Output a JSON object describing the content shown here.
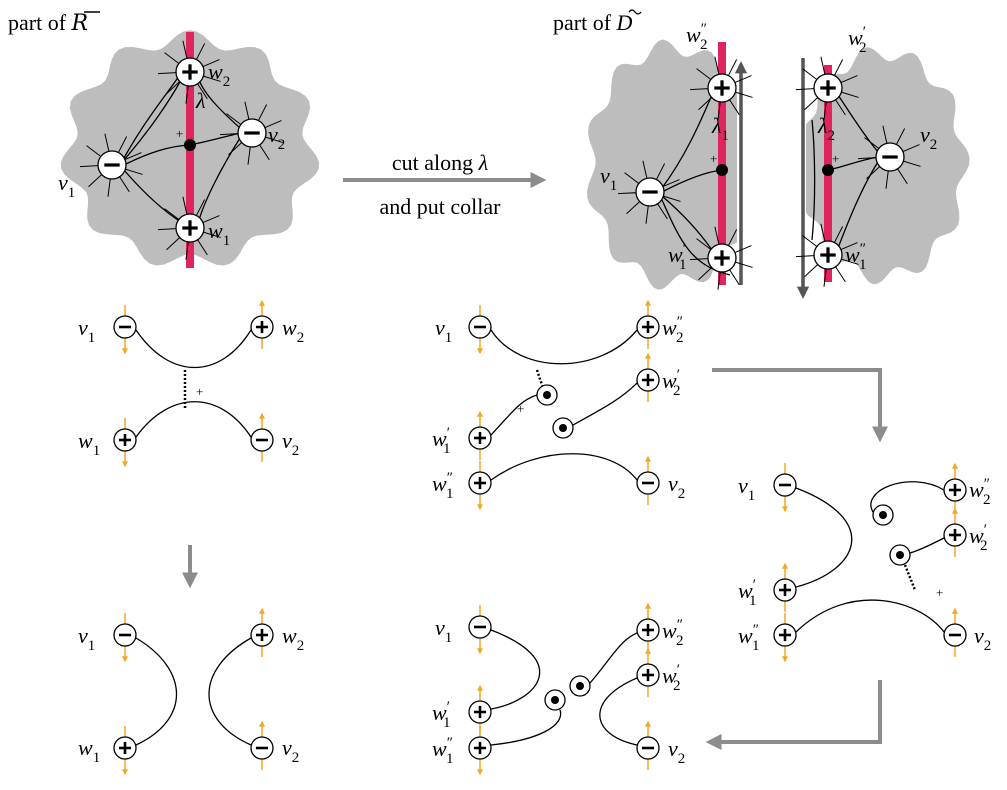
{
  "captions": {
    "left": {
      "text": "part of",
      "symbol": "R"
    },
    "right": {
      "text": "part of",
      "symbol": "D"
    }
  },
  "transition": {
    "line1": "cut along",
    "symbol": "λ",
    "line2": "and put collar"
  },
  "labels": [
    {
      "base": "w",
      "sub": "2"
    },
    {
      "base": "w",
      "sub": "1"
    },
    {
      "base": "v",
      "sub": "1"
    },
    {
      "base": "v",
      "sub": "2"
    },
    {
      "base": "λ"
    },
    {
      "base": "w",
      "sup": "″",
      "sub": "2"
    },
    {
      "base": "λ",
      "sub": "1"
    },
    {
      "base": "v",
      "sub": "1"
    },
    {
      "base": "w",
      "sup": "′",
      "sub": "1"
    },
    {
      "base": "w",
      "sup": "′",
      "sub": "2"
    },
    {
      "base": "λ",
      "sub": "2"
    },
    {
      "base": "v",
      "sub": "2"
    },
    {
      "base": "w",
      "sup": "″",
      "sub": "1"
    },
    {
      "base": "v",
      "sub": "1"
    },
    {
      "base": "w",
      "sub": "2"
    },
    {
      "base": "w",
      "sub": "1"
    },
    {
      "base": "v",
      "sub": "2"
    },
    {
      "base": "v",
      "sub": "1"
    },
    {
      "base": "w",
      "sub": "2"
    },
    {
      "base": "w",
      "sub": "1"
    },
    {
      "base": "v",
      "sub": "2"
    },
    {
      "base": "v",
      "sub": "1"
    },
    {
      "base": "w",
      "sup": "″",
      "sub": "2"
    },
    {
      "base": "w",
      "sup": "′",
      "sub": "2"
    },
    {
      "base": "w",
      "sup": "′",
      "sub": "1"
    },
    {
      "base": "w",
      "sup": "″",
      "sub": "1"
    },
    {
      "base": "v",
      "sub": "2"
    },
    {
      "base": "v",
      "sub": "1"
    },
    {
      "base": "w",
      "sup": "″",
      "sub": "2"
    },
    {
      "base": "w",
      "sup": "′",
      "sub": "2"
    },
    {
      "base": "w",
      "sup": "′",
      "sub": "1"
    },
    {
      "base": "w",
      "sup": "″",
      "sub": "1"
    },
    {
      "base": "v",
      "sub": "2"
    },
    {
      "base": "v",
      "sub": "1"
    },
    {
      "base": "w",
      "sup": "″",
      "sub": "2"
    },
    {
      "base": "w",
      "sup": "′",
      "sub": "2"
    },
    {
      "base": "w",
      "sup": "′",
      "sub": "1"
    },
    {
      "base": "w",
      "sup": "″",
      "sub": "1"
    },
    {
      "base": "v",
      "sub": "2"
    }
  ],
  "signs": [
    "+",
    "+",
    "+",
    "+",
    "+",
    "+"
  ]
}
